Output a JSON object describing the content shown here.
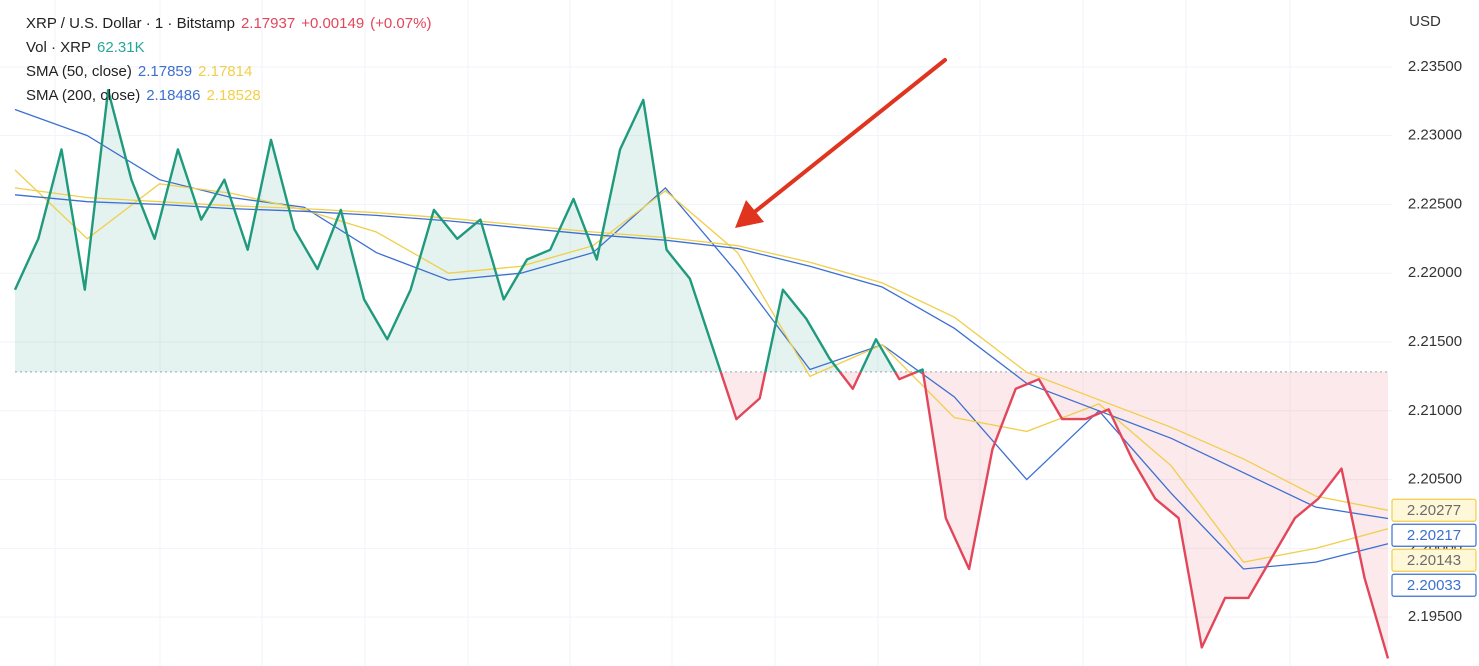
{
  "chart_data": {
    "type": "line",
    "quote": {
      "price": "2.17937",
      "change": "+0.00149",
      "change_pct": "(+0.07%)"
    },
    "volume": {
      "name": "Vol · XRP",
      "value": "62.31K"
    },
    "indicators": [
      {
        "name": "SMA (50, close)",
        "values": [
          "2.17859",
          "2.17814"
        ]
      },
      {
        "name": "SMA (200, close)",
        "values": [
          "2.18486",
          "2.18528"
        ]
      }
    ],
    "y_axis_label": "USD",
    "ylim": [
      2.19145,
      2.23986
    ],
    "yticks": [
      {
        "value": 2.195,
        "label": "2.19500"
      },
      {
        "value": 2.2,
        "label": "2.20000"
      },
      {
        "value": 2.205,
        "label": "2.20500"
      },
      {
        "value": 2.21,
        "label": "2.21000"
      },
      {
        "value": 2.215,
        "label": "2.21500"
      },
      {
        "value": 2.22,
        "label": "2.22000"
      },
      {
        "value": 2.225,
        "label": "2.22500"
      },
      {
        "value": 2.23,
        "label": "2.23000"
      },
      {
        "value": 2.235,
        "label": "2.23500"
      }
    ],
    "grid": true,
    "baseline": 2.21283,
    "up_color": "#1f9a7d",
    "down_color": "#e2465a",
    "series": [
      {
        "name": "XRP / U.S. Dollar · 1 · Bitstamp",
        "values": [
          2.2188,
          2.2225,
          2.229,
          2.2188,
          2.2333,
          2.2268,
          2.2225,
          2.229,
          2.2239,
          2.2268,
          2.2217,
          2.2297,
          2.2232,
          2.2203,
          2.2246,
          2.2181,
          2.2152,
          2.2188,
          2.2246,
          2.2225,
          2.2239,
          2.2181,
          2.221,
          2.2217,
          2.2254,
          2.221,
          2.229,
          2.2326,
          2.2217,
          2.2196,
          2.2145,
          2.2094,
          2.2109,
          2.2188,
          2.2167,
          2.2138,
          2.2116,
          2.2152,
          2.2123,
          2.213,
          2.2022,
          2.1985,
          2.2072,
          2.2116,
          2.2123,
          2.2094,
          2.2094,
          2.2101,
          2.2065,
          2.2036,
          2.2022,
          2.1928,
          2.1964,
          2.1964,
          2.1993,
          2.2022,
          2.2036,
          2.2058,
          2.1978,
          2.192
        ]
      },
      {
        "color": "#3d6fd1",
        "values": [
          2.2319,
          2.23,
          2.2268,
          2.2255,
          2.2248,
          2.2215,
          2.2195,
          2.22,
          2.2215,
          2.2262,
          2.22,
          2.213,
          2.2148,
          2.211,
          2.205,
          2.21,
          2.204,
          2.1985,
          2.199,
          2.20033
        ]
      },
      {
        "color": "#f0cf4a",
        "values": [
          2.2275,
          2.2225,
          2.2265,
          2.2258,
          2.2246,
          2.223,
          2.22,
          2.2205,
          2.222,
          2.226,
          2.2215,
          2.2125,
          2.2148,
          2.2095,
          2.2085,
          2.2105,
          2.206,
          2.199,
          2.2,
          2.20143
        ]
      },
      {
        "color": "#3d6fd1",
        "values": [
          2.2257,
          2.2252,
          2.225,
          2.2247,
          2.2245,
          2.2242,
          2.2238,
          2.2233,
          2.2228,
          2.2224,
          2.2218,
          2.2205,
          2.219,
          2.216,
          2.212,
          2.21,
          2.208,
          2.2055,
          2.203,
          2.20217
        ]
      },
      {
        "color": "#f0cf4a",
        "values": [
          2.2262,
          2.2255,
          2.2252,
          2.2249,
          2.2247,
          2.2244,
          2.224,
          2.2235,
          2.223,
          2.2226,
          2.222,
          2.2208,
          2.2193,
          2.2168,
          2.2128,
          2.2108,
          2.2088,
          2.2065,
          2.2038,
          2.20277
        ]
      }
    ]
  }
}
